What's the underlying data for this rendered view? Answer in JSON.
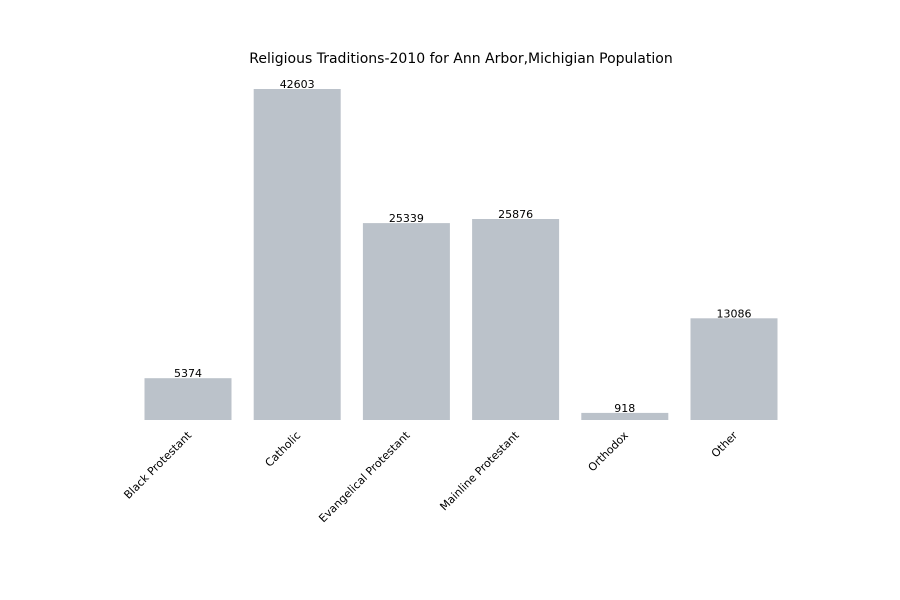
{
  "chart_data": {
    "type": "bar",
    "title": "Religious Traditions-2010 for Ann Arbor,Michigian Population",
    "xlabel": "",
    "ylabel": "",
    "categories": [
      "Black Protestant",
      "Catholic",
      "Evangelical Protestant",
      "Mainline Protestant",
      "Orthodox",
      "Other"
    ],
    "values": [
      5374,
      42603,
      25339,
      25876,
      918,
      13086
    ],
    "data_labels": [
      "5374",
      "42603",
      "25339",
      "25876",
      "918",
      "13086"
    ],
    "ylim": [
      0,
      42603
    ],
    "grid": false,
    "legend": "none",
    "bar_color": "#bbc2ca",
    "axes_visible": false
  }
}
